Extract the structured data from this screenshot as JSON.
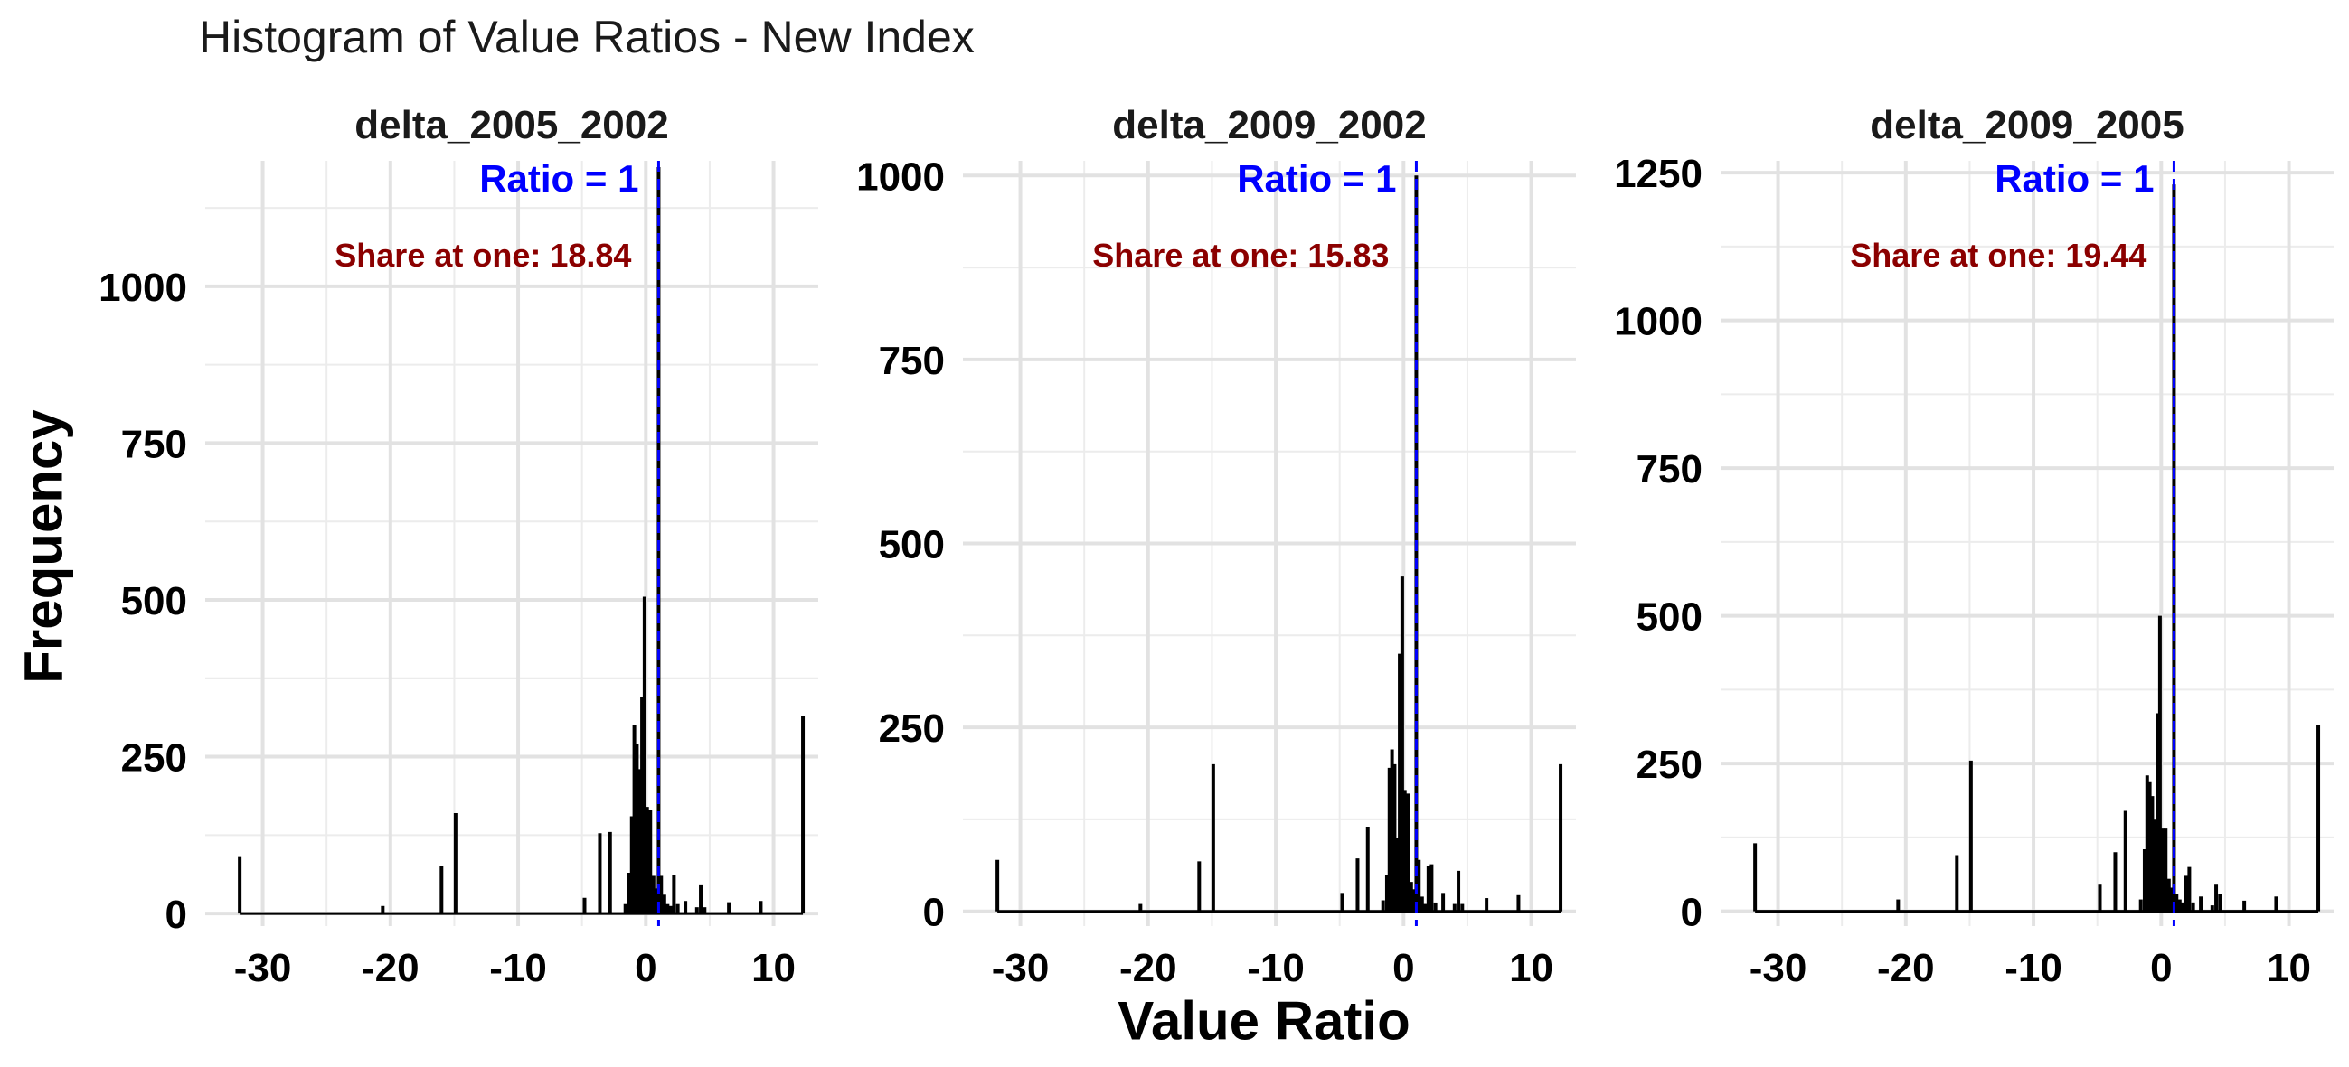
{
  "chart_data": {
    "type": "bar",
    "title": "Histogram of Value Ratios - New Index",
    "xlabel": "Value Ratio",
    "ylabel": "Frequency",
    "grid": true,
    "legend": "none",
    "reference_line": {
      "x": 1,
      "label": "Ratio = 1",
      "color": "#0000ff",
      "style": "dashed"
    },
    "bar_color": "#000000",
    "annotation_color": "#8b0000",
    "xlim": [
      -34.5,
      13.5
    ],
    "x_ticks": [
      -30,
      -20,
      -10,
      0,
      10
    ],
    "panels": [
      {
        "name": "delta_2005_2002",
        "annotation": "Share at one: 18.84",
        "ylim": [
          -20,
          1200
        ],
        "y_ticks": [
          0,
          250,
          500,
          750,
          1000
        ],
        "bins": [
          [
            -31.8,
            90
          ],
          [
            -20.6,
            12
          ],
          [
            -16.0,
            75
          ],
          [
            -14.9,
            160
          ],
          [
            -4.8,
            25
          ],
          [
            -3.6,
            128
          ],
          [
            -2.8,
            130
          ],
          [
            -1.6,
            15
          ],
          [
            -1.3,
            65
          ],
          [
            -1.1,
            155
          ],
          [
            -0.9,
            300
          ],
          [
            -0.7,
            270
          ],
          [
            -0.5,
            230
          ],
          [
            -0.3,
            345
          ],
          [
            -0.1,
            505
          ],
          [
            0.1,
            170
          ],
          [
            0.35,
            165
          ],
          [
            0.6,
            60
          ],
          [
            0.85,
            40
          ],
          [
            1.0,
            1190
          ],
          [
            1.2,
            60
          ],
          [
            1.45,
            30
          ],
          [
            1.7,
            15
          ],
          [
            1.95,
            12
          ],
          [
            2.2,
            62
          ],
          [
            2.5,
            15
          ],
          [
            3.1,
            20
          ],
          [
            4.0,
            10
          ],
          [
            4.3,
            45
          ],
          [
            4.6,
            10
          ],
          [
            6.5,
            18
          ],
          [
            9.0,
            20
          ],
          [
            12.3,
            315
          ]
        ]
      },
      {
        "name": "delta_2009_2002",
        "annotation": "Share at one: 15.83",
        "ylim": [
          -20,
          1020
        ],
        "y_ticks": [
          0,
          250,
          500,
          750,
          1000
        ],
        "bins": [
          [
            -31.8,
            70
          ],
          [
            -20.6,
            10
          ],
          [
            -16.0,
            68
          ],
          [
            -14.9,
            200
          ],
          [
            -4.8,
            25
          ],
          [
            -3.6,
            72
          ],
          [
            -2.8,
            115
          ],
          [
            -1.6,
            15
          ],
          [
            -1.3,
            50
          ],
          [
            -1.1,
            195
          ],
          [
            -0.9,
            220
          ],
          [
            -0.7,
            200
          ],
          [
            -0.5,
            100
          ],
          [
            -0.3,
            350
          ],
          [
            -0.1,
            455
          ],
          [
            0.1,
            165
          ],
          [
            0.35,
            160
          ],
          [
            0.6,
            40
          ],
          [
            0.85,
            30
          ],
          [
            1.0,
            1000
          ],
          [
            1.2,
            70
          ],
          [
            1.45,
            20
          ],
          [
            1.7,
            10
          ],
          [
            1.95,
            62
          ],
          [
            2.2,
            64
          ],
          [
            2.5,
            12
          ],
          [
            3.1,
            25
          ],
          [
            4.0,
            10
          ],
          [
            4.3,
            55
          ],
          [
            4.6,
            10
          ],
          [
            6.5,
            18
          ],
          [
            9.0,
            22
          ],
          [
            12.3,
            200
          ]
        ]
      },
      {
        "name": "delta_2009_2005",
        "annotation": "Share at one: 19.44",
        "ylim": [
          -25,
          1270
        ],
        "y_ticks": [
          0,
          250,
          500,
          750,
          1000,
          1250
        ],
        "bins": [
          [
            -31.8,
            115
          ],
          [
            -20.6,
            20
          ],
          [
            -16.0,
            95
          ],
          [
            -14.9,
            255
          ],
          [
            -4.8,
            45
          ],
          [
            -3.6,
            100
          ],
          [
            -2.8,
            170
          ],
          [
            -1.6,
            20
          ],
          [
            -1.3,
            105
          ],
          [
            -1.1,
            230
          ],
          [
            -0.9,
            220
          ],
          [
            -0.7,
            195
          ],
          [
            -0.5,
            155
          ],
          [
            -0.3,
            335
          ],
          [
            -0.1,
            500
          ],
          [
            0.1,
            140
          ],
          [
            0.35,
            140
          ],
          [
            0.6,
            55
          ],
          [
            0.85,
            40
          ],
          [
            1.0,
            1230
          ],
          [
            1.2,
            30
          ],
          [
            1.45,
            20
          ],
          [
            1.7,
            15
          ],
          [
            1.95,
            60
          ],
          [
            2.2,
            75
          ],
          [
            2.5,
            15
          ],
          [
            3.1,
            25
          ],
          [
            4.0,
            10
          ],
          [
            4.3,
            45
          ],
          [
            4.6,
            30
          ],
          [
            6.5,
            18
          ],
          [
            9.0,
            25
          ],
          [
            12.3,
            315
          ]
        ]
      }
    ]
  }
}
